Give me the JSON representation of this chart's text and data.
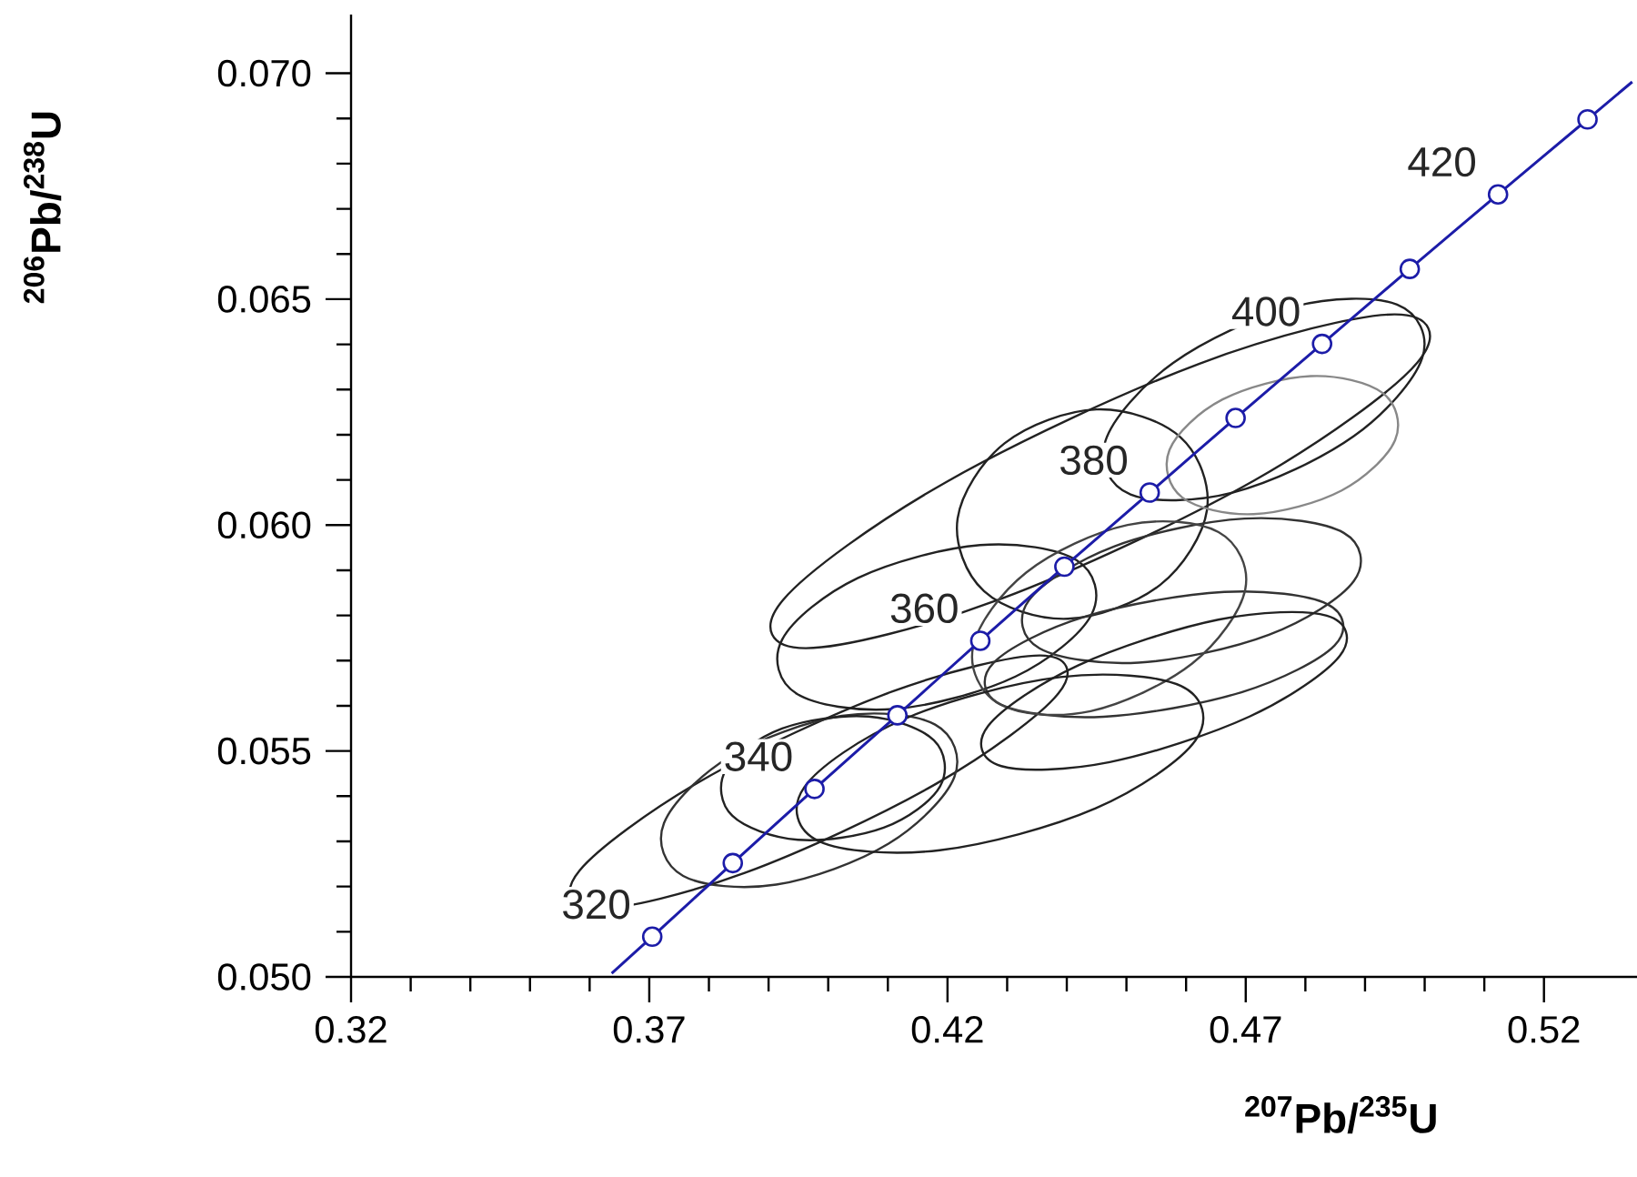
{
  "chart_data": {
    "type": "line",
    "xlabel": "$^{207}$Pb/$^{235}$U",
    "ylabel": "$^{206}$Pb/$^{238}$U",
    "xlim": [
      0.32,
      0.5356
    ],
    "ylim": [
      0.05,
      0.0713
    ],
    "xticks": [
      0.32,
      0.37,
      0.42,
      0.47,
      0.52
    ],
    "yticks": [
      {
        "value": 0.05,
        "label": "0.050"
      },
      {
        "value": 0.055,
        "label": "0.055"
      },
      {
        "value": 0.06,
        "label": "0.060"
      },
      {
        "value": 0.065,
        "label": "0.065"
      },
      {
        "value": 0.07,
        "label": "0.070"
      }
    ],
    "grid": false,
    "series": [
      {
        "color": "#1c1ca8",
        "x": [
          0.3637,
          0.3705,
          0.384,
          0.3977,
          0.4116,
          0.4255,
          0.4396,
          0.4539,
          0.4683,
          0.4828,
          0.4975,
          0.5123,
          0.5273,
          0.5348
        ],
        "values": [
          0.05008,
          0.05089,
          0.05252,
          0.05416,
          0.05579,
          0.05744,
          0.05908,
          0.06072,
          0.06237,
          0.06401,
          0.06567,
          0.06732,
          0.06898,
          0.06981
        ]
      },
      {
        "type": "scatter",
        "marker": "circle",
        "color": "#1c1ca8",
        "x": [
          0.3705,
          0.384,
          0.3977,
          0.4116,
          0.4255,
          0.4396,
          0.4539,
          0.4683,
          0.4828,
          0.4975,
          0.5123,
          0.5273
        ],
        "values": [
          0.05089,
          0.05252,
          0.05416,
          0.05579,
          0.05744,
          0.05908,
          0.06072,
          0.06237,
          0.06401,
          0.06567,
          0.06732,
          0.06898
        ]
      }
    ],
    "annotations": [
      {
        "text": "320",
        "x": 0.3705,
        "y": 0.05089
      },
      {
        "text": "340",
        "x": 0.3977,
        "y": 0.05416
      },
      {
        "text": "360",
        "x": 0.4255,
        "y": 0.05744
      },
      {
        "text": "380",
        "x": 0.4539,
        "y": 0.06072
      },
      {
        "text": "400",
        "x": 0.4828,
        "y": 0.06401
      },
      {
        "text": "420",
        "x": 0.5123,
        "y": 0.06732
      }
    ]
  }
}
